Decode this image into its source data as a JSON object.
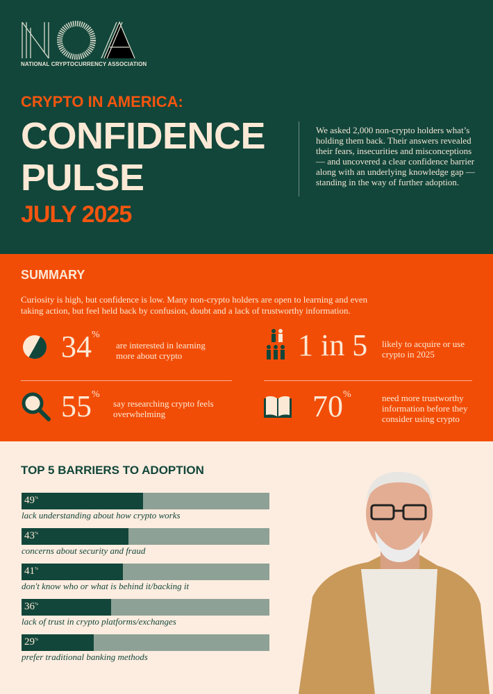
{
  "brand": {
    "logo_letters": "NCA",
    "name": "NATIONAL CRYPTOCURRENCY ASSOCIATION"
  },
  "hero": {
    "kicker": "CRYPTO IN AMERICA:",
    "title_line1": "CONFIDENCE",
    "title_line2": "PULSE",
    "date": "JULY 2025",
    "intro": "We asked 2,000 non-crypto holders what’s holding them back. Their answers revealed their fears, insecurities and misconceptions — and uncovered a clear confidence barrier along with an underlying knowledge gap — standing in the way of further adoption."
  },
  "summary": {
    "heading": "SUMMARY",
    "text": "Curiosity is high, but confidence is low. Many non-crypto holders are open to learning and even taking action, but feel held back by confusion, doubt and a lack of trustworthy information.",
    "stats": [
      {
        "icon": "pie-chart-icon",
        "value": "34",
        "unit": "%",
        "text": "are interested in learning more about crypto"
      },
      {
        "icon": "people-icon",
        "value": "1 in 5",
        "unit": "",
        "text": "likely to acquire or use crypto in 2025"
      },
      {
        "icon": "magnifier-icon",
        "value": "55",
        "unit": "%",
        "text": "say researching crypto feels overwhelming"
      },
      {
        "icon": "book-icon",
        "value": "70",
        "unit": "%",
        "text": "need more trustworthy information before they consider using crypto"
      }
    ]
  },
  "barriers": {
    "heading": "TOP 5 BARRIERS TO ADOPTION",
    "unit": "%",
    "items": [
      {
        "value": 49,
        "label": "lack understanding about how crypto works"
      },
      {
        "value": 43,
        "label": "concerns about security and fraud"
      },
      {
        "value": 41,
        "label": "don't know who or what is behind it/backing it"
      },
      {
        "value": 36,
        "label": "lack of trust in crypto platforms/exchanges"
      },
      {
        "value": 29,
        "label": "prefer traditional banking methods"
      }
    ]
  },
  "colors": {
    "green": "#12463a",
    "orange": "#f24d07",
    "cream": "#fdede0",
    "track": "#8ea196"
  }
}
